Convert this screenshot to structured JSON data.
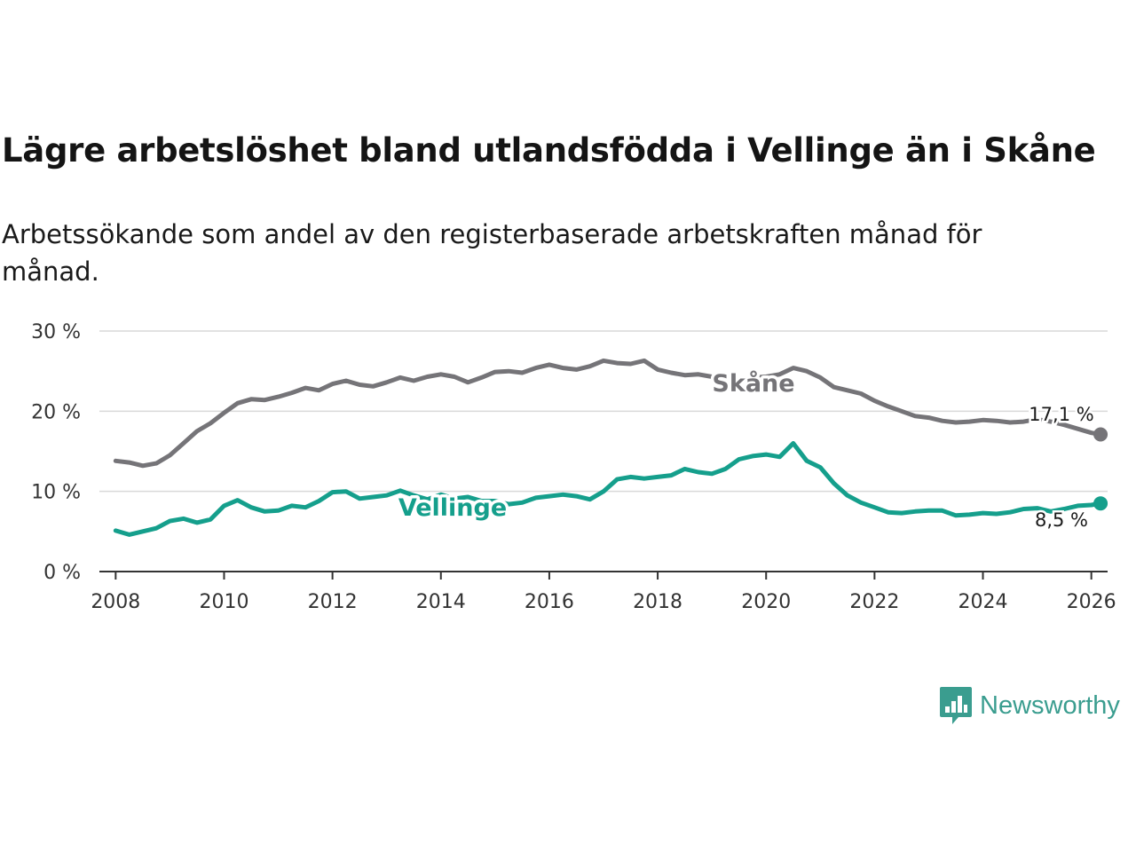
{
  "title": "Lägre arbetslöshet bland utlandsfödda i Vellinge än i Skåne",
  "subtitle": "Arbetssökande som andel av den registerbaserade arbetskraften månad för månad.",
  "brand": {
    "name": "Newsworthy",
    "icon": "bar-chart-speech-bubble-icon"
  },
  "colors": {
    "skane": "#757478",
    "vellinge": "#159f8c",
    "grid": "#d9d9d9",
    "axis": "#333333",
    "brand": "#3a9d8f"
  },
  "chart_data": {
    "type": "line",
    "title": "Lägre arbetslöshet bland utlandsfödda i Vellinge än i Skåne",
    "xlabel": "",
    "ylabel": "",
    "xlim": [
      2007.7,
      2026.3
    ],
    "ylim": [
      0,
      30
    ],
    "x_ticks": [
      2008,
      2010,
      2012,
      2014,
      2016,
      2018,
      2020,
      2022,
      2024,
      2026
    ],
    "y_ticks": [
      0,
      10,
      20,
      30
    ],
    "y_tick_labels": [
      "0 %",
      "10 %",
      "20 %",
      "30 %"
    ],
    "grid": true,
    "series": [
      {
        "name": "Skåne",
        "color": "#757478",
        "end_label": "17,1 %",
        "points": [
          [
            2008.0,
            13.8
          ],
          [
            2008.25,
            13.6
          ],
          [
            2008.5,
            13.2
          ],
          [
            2008.75,
            13.5
          ],
          [
            2009.0,
            14.5
          ],
          [
            2009.25,
            16.0
          ],
          [
            2009.5,
            17.5
          ],
          [
            2009.75,
            18.5
          ],
          [
            2010.0,
            19.8
          ],
          [
            2010.25,
            21.0
          ],
          [
            2010.5,
            21.5
          ],
          [
            2010.75,
            21.4
          ],
          [
            2011.0,
            21.8
          ],
          [
            2011.25,
            22.3
          ],
          [
            2011.5,
            22.9
          ],
          [
            2011.75,
            22.6
          ],
          [
            2012.0,
            23.4
          ],
          [
            2012.25,
            23.8
          ],
          [
            2012.5,
            23.3
          ],
          [
            2012.75,
            23.1
          ],
          [
            2013.0,
            23.6
          ],
          [
            2013.25,
            24.2
          ],
          [
            2013.5,
            23.8
          ],
          [
            2013.75,
            24.3
          ],
          [
            2014.0,
            24.6
          ],
          [
            2014.25,
            24.3
          ],
          [
            2014.5,
            23.6
          ],
          [
            2014.75,
            24.2
          ],
          [
            2015.0,
            24.9
          ],
          [
            2015.25,
            25.0
          ],
          [
            2015.5,
            24.8
          ],
          [
            2015.75,
            25.4
          ],
          [
            2016.0,
            25.8
          ],
          [
            2016.25,
            25.4
          ],
          [
            2016.5,
            25.2
          ],
          [
            2016.75,
            25.6
          ],
          [
            2017.0,
            26.3
          ],
          [
            2017.25,
            26.0
          ],
          [
            2017.5,
            25.9
          ],
          [
            2017.75,
            26.3
          ],
          [
            2018.0,
            25.2
          ],
          [
            2018.25,
            24.8
          ],
          [
            2018.5,
            24.5
          ],
          [
            2018.75,
            24.6
          ],
          [
            2019.0,
            24.3
          ],
          [
            2019.25,
            23.4
          ],
          [
            2019.5,
            23.5
          ],
          [
            2019.75,
            24.2
          ],
          [
            2020.0,
            24.3
          ],
          [
            2020.25,
            24.6
          ],
          [
            2020.5,
            25.4
          ],
          [
            2020.75,
            25.0
          ],
          [
            2021.0,
            24.2
          ],
          [
            2021.25,
            23.0
          ],
          [
            2021.5,
            22.6
          ],
          [
            2021.75,
            22.2
          ],
          [
            2022.0,
            21.3
          ],
          [
            2022.25,
            20.6
          ],
          [
            2022.5,
            20.0
          ],
          [
            2022.75,
            19.4
          ],
          [
            2023.0,
            19.2
          ],
          [
            2023.25,
            18.8
          ],
          [
            2023.5,
            18.6
          ],
          [
            2023.75,
            18.7
          ],
          [
            2024.0,
            18.9
          ],
          [
            2024.25,
            18.8
          ],
          [
            2024.5,
            18.6
          ],
          [
            2024.75,
            18.7
          ],
          [
            2025.0,
            19.0
          ],
          [
            2025.25,
            18.7
          ],
          [
            2025.5,
            18.3
          ],
          [
            2025.75,
            17.8
          ],
          [
            2026.0,
            17.3
          ],
          [
            2026.17,
            17.1
          ]
        ]
      },
      {
        "name": "Vellinge",
        "color": "#159f8c",
        "end_label": "8,5 %",
        "points": [
          [
            2008.0,
            5.1
          ],
          [
            2008.25,
            4.6
          ],
          [
            2008.5,
            5.0
          ],
          [
            2008.75,
            5.4
          ],
          [
            2009.0,
            6.3
          ],
          [
            2009.25,
            6.6
          ],
          [
            2009.5,
            6.1
          ],
          [
            2009.75,
            6.5
          ],
          [
            2010.0,
            8.2
          ],
          [
            2010.25,
            8.9
          ],
          [
            2010.5,
            8.0
          ],
          [
            2010.75,
            7.5
          ],
          [
            2011.0,
            7.6
          ],
          [
            2011.25,
            8.2
          ],
          [
            2011.5,
            8.0
          ],
          [
            2011.75,
            8.8
          ],
          [
            2012.0,
            9.9
          ],
          [
            2012.25,
            10.0
          ],
          [
            2012.5,
            9.1
          ],
          [
            2012.75,
            9.3
          ],
          [
            2013.0,
            9.5
          ],
          [
            2013.25,
            10.1
          ],
          [
            2013.5,
            9.5
          ],
          [
            2013.75,
            9.0
          ],
          [
            2014.0,
            9.6
          ],
          [
            2014.25,
            9.1
          ],
          [
            2014.5,
            9.3
          ],
          [
            2014.75,
            8.8
          ],
          [
            2015.0,
            8.8
          ],
          [
            2015.25,
            8.4
          ],
          [
            2015.5,
            8.6
          ],
          [
            2015.75,
            9.2
          ],
          [
            2016.0,
            9.4
          ],
          [
            2016.25,
            9.6
          ],
          [
            2016.5,
            9.4
          ],
          [
            2016.75,
            9.0
          ],
          [
            2017.0,
            10.0
          ],
          [
            2017.25,
            11.5
          ],
          [
            2017.5,
            11.8
          ],
          [
            2017.75,
            11.6
          ],
          [
            2018.0,
            11.8
          ],
          [
            2018.25,
            12.0
          ],
          [
            2018.5,
            12.8
          ],
          [
            2018.75,
            12.4
          ],
          [
            2019.0,
            12.2
          ],
          [
            2019.25,
            12.8
          ],
          [
            2019.5,
            14.0
          ],
          [
            2019.75,
            14.4
          ],
          [
            2020.0,
            14.6
          ],
          [
            2020.25,
            14.3
          ],
          [
            2020.5,
            16.0
          ],
          [
            2020.75,
            13.8
          ],
          [
            2021.0,
            13.0
          ],
          [
            2021.25,
            11.0
          ],
          [
            2021.5,
            9.5
          ],
          [
            2021.75,
            8.6
          ],
          [
            2022.0,
            8.0
          ],
          [
            2022.25,
            7.4
          ],
          [
            2022.5,
            7.3
          ],
          [
            2022.75,
            7.5
          ],
          [
            2023.0,
            7.6
          ],
          [
            2023.25,
            7.6
          ],
          [
            2023.5,
            7.0
          ],
          [
            2023.75,
            7.1
          ],
          [
            2024.0,
            7.3
          ],
          [
            2024.25,
            7.2
          ],
          [
            2024.5,
            7.4
          ],
          [
            2024.75,
            7.8
          ],
          [
            2025.0,
            7.9
          ],
          [
            2025.25,
            7.5
          ],
          [
            2025.5,
            7.8
          ],
          [
            2025.75,
            8.2
          ],
          [
            2026.0,
            8.3
          ],
          [
            2026.17,
            8.5
          ]
        ]
      }
    ]
  }
}
